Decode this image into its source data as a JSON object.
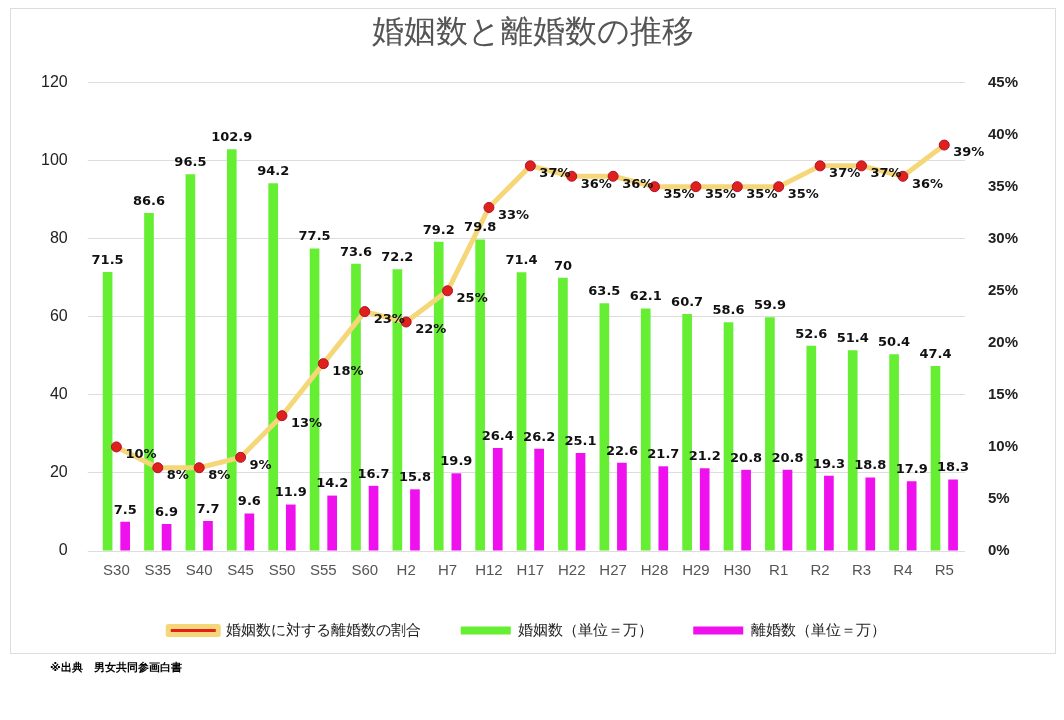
{
  "chart_data": {
    "type": "bar",
    "title": "婚姻数と離婚数の推移",
    "categories": [
      "S30",
      "S35",
      "S40",
      "S45",
      "S50",
      "S55",
      "S60",
      "H2",
      "H7",
      "H12",
      "H17",
      "H22",
      "H27",
      "H28",
      "H29",
      "H30",
      "R1",
      "R2",
      "R3",
      "R4",
      "R5"
    ],
    "series": [
      {
        "name": "婚姻数（単位＝万）",
        "color": "#66ee33",
        "values": [
          71.5,
          86.6,
          96.5,
          102.9,
          94.2,
          77.5,
          73.6,
          72.2,
          79.2,
          79.8,
          71.4,
          70,
          63.5,
          62.1,
          60.7,
          58.6,
          59.9,
          52.6,
          51.4,
          50.4,
          47.4
        ]
      },
      {
        "name": "離婚数（単位＝万）",
        "color": "#ee11ee",
        "values": [
          7.5,
          6.9,
          7.7,
          9.6,
          11.9,
          14.2,
          16.7,
          15.8,
          19.9,
          26.4,
          26.2,
          25.1,
          22.6,
          21.7,
          21.2,
          20.8,
          20.8,
          19.3,
          18.8,
          17.9,
          18.3
        ]
      },
      {
        "name": "婚姻数に対する離婚数の割合",
        "type": "line",
        "axis": "y2",
        "color": "#f5d77a",
        "values": [
          10,
          8,
          8,
          9,
          13,
          18,
          23,
          22,
          25,
          33,
          37,
          36,
          36,
          35,
          35,
          35,
          35,
          37,
          37,
          36,
          39
        ],
        "value_labels": [
          "10%",
          "8%",
          "8%",
          "9%",
          "13%",
          "18%",
          "23%",
          "22%",
          "25%",
          "33%",
          "37%",
          "36%",
          "36%",
          "35%",
          "35%",
          "35%",
          "35%",
          "37%",
          "37%",
          "36%",
          "39%"
        ]
      }
    ],
    "ylim": [
      0,
      120
    ],
    "yticks": [
      0,
      20,
      40,
      60,
      80,
      100,
      120
    ],
    "y2lim": [
      0,
      45
    ],
    "y2ticks": [
      {
        "value": 0,
        "label": "0%"
      },
      {
        "value": 5,
        "label": "5%"
      },
      {
        "value": 10,
        "label": "10%"
      },
      {
        "value": 15,
        "label": "15%"
      },
      {
        "value": 20,
        "label": "20%"
      },
      {
        "value": 25,
        "label": "25%"
      },
      {
        "value": 30,
        "label": "30%"
      },
      {
        "value": 35,
        "label": "35%"
      },
      {
        "value": 40,
        "label": "40%"
      },
      {
        "value": 45,
        "label": "45%"
      }
    ],
    "grid": "y",
    "legend": "bottom",
    "marker": "circle",
    "data_labels": true,
    "annotations": [
      "※出典　男女共同参画白書"
    ]
  }
}
